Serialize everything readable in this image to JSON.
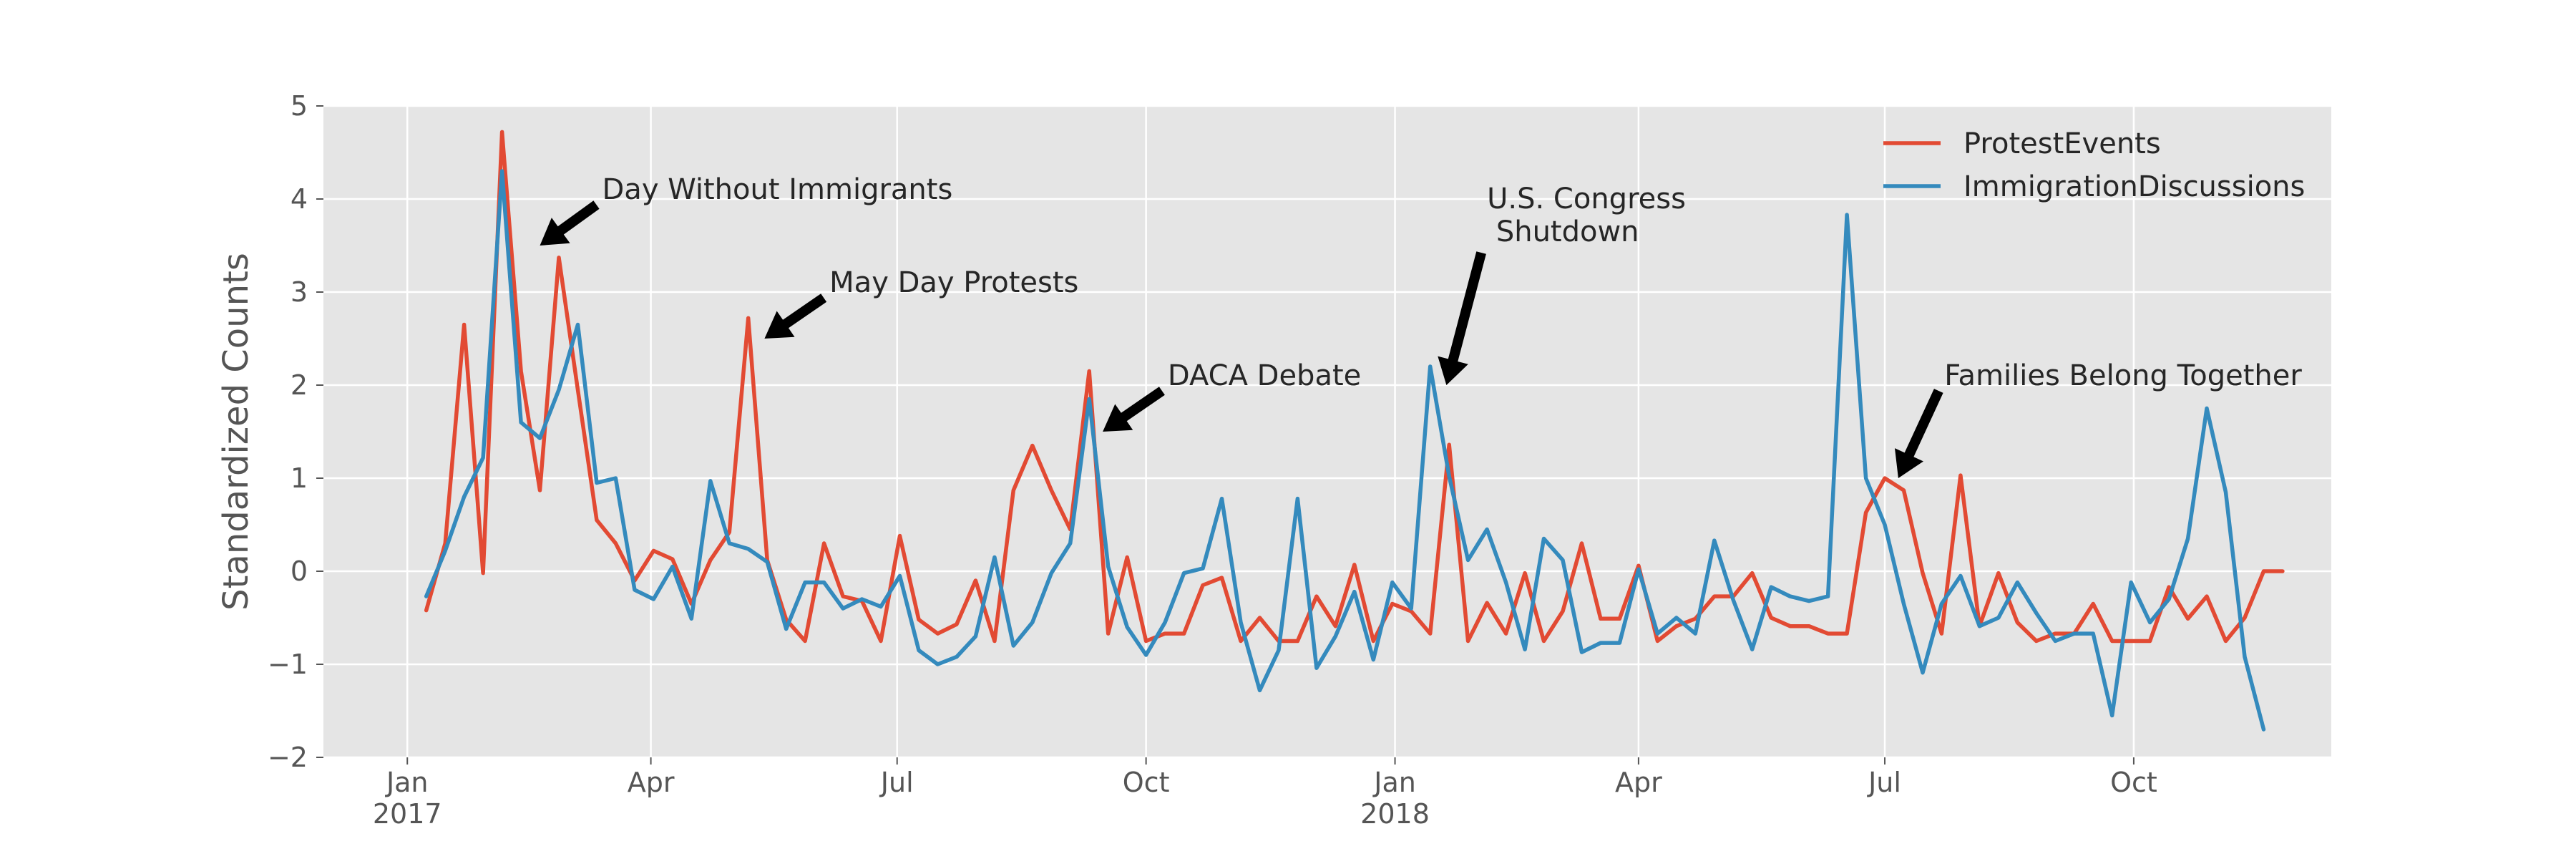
{
  "chart_data": {
    "type": "line",
    "ylabel": "Standardized Counts",
    "ylim": [
      -2,
      5
    ],
    "yticks": [
      -2,
      -1,
      0,
      1,
      2,
      3,
      4,
      5
    ],
    "xlim": [
      "2016-12-01",
      "2018-12-13"
    ],
    "xticks": [
      {
        "date": "2017-01-01",
        "label": "Jan",
        "sublabel": "2017"
      },
      {
        "date": "2017-04-01",
        "label": "Apr",
        "sublabel": ""
      },
      {
        "date": "2017-07-01",
        "label": "Jul",
        "sublabel": ""
      },
      {
        "date": "2017-10-01",
        "label": "Oct",
        "sublabel": ""
      },
      {
        "date": "2018-01-01",
        "label": "Jan",
        "sublabel": "2018"
      },
      {
        "date": "2018-04-01",
        "label": "Apr",
        "sublabel": ""
      },
      {
        "date": "2018-07-01",
        "label": "Jul",
        "sublabel": ""
      },
      {
        "date": "2018-10-01",
        "label": "Oct",
        "sublabel": ""
      }
    ],
    "grid": true,
    "legend_position": "top-right",
    "x_start": "2017-01-08",
    "x_step_days": 7,
    "series": [
      {
        "name": "ProtestEvents",
        "color": "#E24A33",
        "values": [
          -0.42,
          0.3,
          2.65,
          -0.02,
          4.72,
          2.15,
          0.87,
          3.37,
          1.95,
          0.55,
          0.3,
          -0.1,
          0.22,
          0.13,
          -0.35,
          0.12,
          0.42,
          2.72,
          0.12,
          -0.52,
          -0.75,
          0.3,
          -0.27,
          -0.32,
          -0.75,
          0.38,
          -0.52,
          -0.67,
          -0.57,
          -0.1,
          -0.75,
          0.87,
          1.35,
          0.87,
          0.45,
          2.15,
          -0.67,
          0.15,
          -0.75,
          -0.67,
          -0.67,
          -0.15,
          -0.07,
          -0.75,
          -0.5,
          -0.75,
          -0.75,
          -0.27,
          -0.59,
          0.07,
          -0.75,
          -0.35,
          -0.43,
          -0.67,
          1.36,
          -0.75,
          -0.34,
          -0.67,
          -0.02,
          -0.75,
          -0.43,
          0.3,
          -0.51,
          -0.51,
          0.06,
          -0.75,
          -0.59,
          -0.51,
          -0.27,
          -0.27,
          -0.02,
          -0.5,
          -0.59,
          -0.59,
          -0.67,
          -0.67,
          0.63,
          1.0,
          0.87,
          -0.02,
          -0.67,
          1.03,
          -0.59,
          -0.02,
          -0.55,
          -0.75,
          -0.67,
          -0.67,
          -0.35,
          -0.75,
          -0.75,
          -0.75,
          -0.17,
          -0.51,
          -0.27,
          -0.75,
          -0.5,
          0.0,
          0.0
        ]
      },
      {
        "name": "ImmigrationDiscussions",
        "color": "#348ABD",
        "values": [
          -0.27,
          0.22,
          0.8,
          1.22,
          4.3,
          1.6,
          1.43,
          1.95,
          2.65,
          0.95,
          1.0,
          -0.2,
          -0.3,
          0.05,
          -0.51,
          0.97,
          0.3,
          0.24,
          0.1,
          -0.62,
          -0.12,
          -0.12,
          -0.4,
          -0.3,
          -0.38,
          -0.05,
          -0.85,
          -1.0,
          -0.92,
          -0.7,
          0.15,
          -0.8,
          -0.55,
          -0.02,
          0.3,
          1.85,
          0.05,
          -0.6,
          -0.9,
          -0.55,
          -0.02,
          0.03,
          0.78,
          -0.55,
          -1.28,
          -0.85,
          0.78,
          -1.04,
          -0.7,
          -0.22,
          -0.95,
          -0.12,
          -0.4,
          2.2,
          1.02,
          0.12,
          0.45,
          -0.12,
          -0.84,
          0.35,
          0.12,
          -0.87,
          -0.77,
          -0.77,
          0.02,
          -0.67,
          -0.5,
          -0.67,
          0.33,
          -0.31,
          -0.84,
          -0.17,
          -0.27,
          -0.32,
          -0.27,
          3.83,
          1.0,
          0.5,
          -0.35,
          -1.09,
          -0.35,
          -0.05,
          -0.59,
          -0.5,
          -0.12,
          -0.45,
          -0.75,
          -0.67,
          -0.67,
          -1.55,
          -0.12,
          -0.55,
          -0.3,
          0.35,
          1.75,
          0.85,
          -0.92,
          -1.7
        ]
      }
    ],
    "annotations": [
      {
        "lines": [
          "Day Without Immigrants"
        ],
        "text_x": "2017-03-14",
        "text_y": 4.0,
        "arrow_x": "2017-02-19",
        "arrow_y": 3.5
      },
      {
        "lines": [
          "May Day Protests"
        ],
        "text_x": "2017-06-06",
        "text_y": 3.0,
        "arrow_x": "2017-05-13",
        "arrow_y": 2.5
      },
      {
        "lines": [
          "DACA Debate"
        ],
        "text_x": "2017-10-09",
        "text_y": 2.0,
        "arrow_x": "2017-09-15",
        "arrow_y": 1.5
      },
      {
        "lines": [
          "U.S. Congress",
          " Shutdown"
        ],
        "text_x": "2018-02-04",
        "text_y": 3.9,
        "arrow_x": "2018-01-20",
        "arrow_y": 2.0
      },
      {
        "lines": [
          "Families Belong Together"
        ],
        "text_x": "2018-07-23",
        "text_y": 2.0,
        "arrow_x": "2018-07-06",
        "arrow_y": 1.0
      }
    ]
  }
}
